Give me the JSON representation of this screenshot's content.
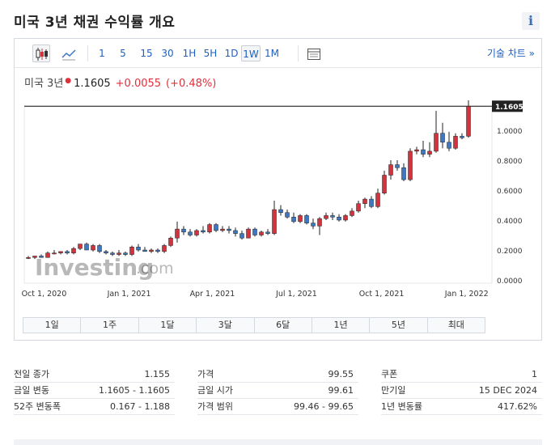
{
  "page": {
    "title": "미국 3년 채권 수익률 개요"
  },
  "toolbar": {
    "intervals": [
      "1",
      "5",
      "15",
      "30",
      "1H",
      "5H",
      "1D",
      "1W",
      "1M"
    ],
    "active_interval": "1W",
    "advanced_chart_link": "기술 차트 »"
  },
  "quote": {
    "name": "미국 3년",
    "price": "1.1605",
    "change": "+0.0055",
    "change_pct": "(+0.48%)"
  },
  "colors": {
    "up": "#d1343f",
    "down": "#3f78c2",
    "accent": "#1f5fbf"
  },
  "watermark": {
    "brand": "Investing",
    "suffix": ".com"
  },
  "chart_data": {
    "type": "candlestick",
    "x_tick_labels": [
      "Oct 1, 2020",
      "Jan 1, 2021",
      "Apr 1, 2021",
      "Jul 1, 2021",
      "Oct 1, 2021",
      "Jan 1, 2022"
    ],
    "y_tick_labels": [
      "1.0000",
      "0.8000",
      "0.6000",
      "0.4000",
      "0.2000",
      "0.0000"
    ],
    "y_ticks": [
      1.0,
      0.8,
      0.6,
      0.4,
      0.2,
      0.0
    ],
    "ylim": [
      0.0,
      1.2
    ],
    "last_price_label": "1.1605",
    "last_price": 1.1605,
    "start_date": "2020-09-14",
    "end_date": "2022-01-24",
    "candles": [
      {
        "o": 0.15,
        "h": 0.16,
        "l": 0.14,
        "c": 0.15
      },
      {
        "o": 0.15,
        "h": 0.16,
        "l": 0.14,
        "c": 0.16
      },
      {
        "o": 0.16,
        "h": 0.17,
        "l": 0.15,
        "c": 0.15
      },
      {
        "o": 0.15,
        "h": 0.19,
        "l": 0.15,
        "c": 0.18
      },
      {
        "o": 0.18,
        "h": 0.2,
        "l": 0.17,
        "c": 0.18
      },
      {
        "o": 0.18,
        "h": 0.19,
        "l": 0.17,
        "c": 0.19
      },
      {
        "o": 0.19,
        "h": 0.2,
        "l": 0.17,
        "c": 0.18
      },
      {
        "o": 0.18,
        "h": 0.22,
        "l": 0.17,
        "c": 0.21
      },
      {
        "o": 0.21,
        "h": 0.24,
        "l": 0.2,
        "c": 0.24
      },
      {
        "o": 0.24,
        "h": 0.25,
        "l": 0.2,
        "c": 0.2
      },
      {
        "o": 0.2,
        "h": 0.24,
        "l": 0.19,
        "c": 0.23
      },
      {
        "o": 0.23,
        "h": 0.24,
        "l": 0.18,
        "c": 0.19
      },
      {
        "o": 0.19,
        "h": 0.2,
        "l": 0.17,
        "c": 0.18
      },
      {
        "o": 0.18,
        "h": 0.19,
        "l": 0.16,
        "c": 0.17
      },
      {
        "o": 0.17,
        "h": 0.2,
        "l": 0.16,
        "c": 0.18
      },
      {
        "o": 0.18,
        "h": 0.19,
        "l": 0.16,
        "c": 0.17
      },
      {
        "o": 0.17,
        "h": 0.23,
        "l": 0.16,
        "c": 0.22
      },
      {
        "o": 0.22,
        "h": 0.24,
        "l": 0.19,
        "c": 0.2
      },
      {
        "o": 0.2,
        "h": 0.22,
        "l": 0.19,
        "c": 0.19
      },
      {
        "o": 0.19,
        "h": 0.21,
        "l": 0.18,
        "c": 0.2
      },
      {
        "o": 0.2,
        "h": 0.21,
        "l": 0.18,
        "c": 0.19
      },
      {
        "o": 0.19,
        "h": 0.24,
        "l": 0.18,
        "c": 0.23
      },
      {
        "o": 0.23,
        "h": 0.29,
        "l": 0.22,
        "c": 0.28
      },
      {
        "o": 0.28,
        "h": 0.39,
        "l": 0.25,
        "c": 0.34
      },
      {
        "o": 0.34,
        "h": 0.36,
        "l": 0.3,
        "c": 0.32
      },
      {
        "o": 0.32,
        "h": 0.34,
        "l": 0.29,
        "c": 0.3
      },
      {
        "o": 0.3,
        "h": 0.34,
        "l": 0.29,
        "c": 0.33
      },
      {
        "o": 0.33,
        "h": 0.36,
        "l": 0.31,
        "c": 0.32
      },
      {
        "o": 0.32,
        "h": 0.38,
        "l": 0.31,
        "c": 0.37
      },
      {
        "o": 0.37,
        "h": 0.38,
        "l": 0.32,
        "c": 0.33
      },
      {
        "o": 0.33,
        "h": 0.36,
        "l": 0.32,
        "c": 0.34
      },
      {
        "o": 0.34,
        "h": 0.36,
        "l": 0.31,
        "c": 0.33
      },
      {
        "o": 0.33,
        "h": 0.35,
        "l": 0.29,
        "c": 0.31
      },
      {
        "o": 0.31,
        "h": 0.33,
        "l": 0.27,
        "c": 0.28
      },
      {
        "o": 0.28,
        "h": 0.35,
        "l": 0.28,
        "c": 0.34
      },
      {
        "o": 0.34,
        "h": 0.35,
        "l": 0.29,
        "c": 0.3
      },
      {
        "o": 0.3,
        "h": 0.33,
        "l": 0.29,
        "c": 0.32
      },
      {
        "o": 0.32,
        "h": 0.34,
        "l": 0.3,
        "c": 0.31
      },
      {
        "o": 0.31,
        "h": 0.53,
        "l": 0.3,
        "c": 0.47
      },
      {
        "o": 0.47,
        "h": 0.5,
        "l": 0.43,
        "c": 0.45
      },
      {
        "o": 0.45,
        "h": 0.47,
        "l": 0.41,
        "c": 0.42
      },
      {
        "o": 0.42,
        "h": 0.45,
        "l": 0.38,
        "c": 0.39
      },
      {
        "o": 0.39,
        "h": 0.44,
        "l": 0.38,
        "c": 0.43
      },
      {
        "o": 0.43,
        "h": 0.44,
        "l": 0.37,
        "c": 0.38
      },
      {
        "o": 0.38,
        "h": 0.41,
        "l": 0.34,
        "c": 0.36
      },
      {
        "o": 0.36,
        "h": 0.42,
        "l": 0.3,
        "c": 0.41
      },
      {
        "o": 0.41,
        "h": 0.45,
        "l": 0.4,
        "c": 0.43
      },
      {
        "o": 0.43,
        "h": 0.45,
        "l": 0.4,
        "c": 0.42
      },
      {
        "o": 0.42,
        "h": 0.44,
        "l": 0.39,
        "c": 0.4
      },
      {
        "o": 0.4,
        "h": 0.44,
        "l": 0.39,
        "c": 0.43
      },
      {
        "o": 0.43,
        "h": 0.48,
        "l": 0.42,
        "c": 0.46
      },
      {
        "o": 0.46,
        "h": 0.53,
        "l": 0.45,
        "c": 0.51
      },
      {
        "o": 0.51,
        "h": 0.55,
        "l": 0.48,
        "c": 0.54
      },
      {
        "o": 0.54,
        "h": 0.56,
        "l": 0.48,
        "c": 0.49
      },
      {
        "o": 0.49,
        "h": 0.61,
        "l": 0.48,
        "c": 0.58
      },
      {
        "o": 0.58,
        "h": 0.73,
        "l": 0.57,
        "c": 0.7
      },
      {
        "o": 0.7,
        "h": 0.8,
        "l": 0.67,
        "c": 0.77
      },
      {
        "o": 0.77,
        "h": 0.8,
        "l": 0.73,
        "c": 0.75
      },
      {
        "o": 0.75,
        "h": 0.78,
        "l": 0.66,
        "c": 0.67
      },
      {
        "o": 0.67,
        "h": 0.88,
        "l": 0.66,
        "c": 0.86
      },
      {
        "o": 0.86,
        "h": 0.89,
        "l": 0.84,
        "c": 0.87
      },
      {
        "o": 0.87,
        "h": 0.93,
        "l": 0.82,
        "c": 0.84
      },
      {
        "o": 0.84,
        "h": 0.92,
        "l": 0.82,
        "c": 0.86
      },
      {
        "o": 0.86,
        "h": 1.13,
        "l": 0.85,
        "c": 0.98
      },
      {
        "o": 0.98,
        "h": 1.05,
        "l": 0.88,
        "c": 0.92
      },
      {
        "o": 0.92,
        "h": 0.99,
        "l": 0.86,
        "c": 0.88
      },
      {
        "o": 0.88,
        "h": 0.98,
        "l": 0.87,
        "c": 0.96
      },
      {
        "o": 0.96,
        "h": 0.98,
        "l": 0.94,
        "c": 0.95
      },
      {
        "o": 0.96,
        "h": 1.2,
        "l": 0.95,
        "c": 1.16
      }
    ]
  },
  "ranges": [
    "1일",
    "1주",
    "1달",
    "3달",
    "6달",
    "1년",
    "5년",
    "최대"
  ],
  "stats": [
    [
      {
        "label": "전일 종가",
        "value": "1.155"
      },
      {
        "label": "가격",
        "value": "99.55"
      },
      {
        "label": "쿠폰",
        "value": "1"
      }
    ],
    [
      {
        "label": "금일 변동",
        "value": "1.1605 - 1.1605"
      },
      {
        "label": "금일 시가",
        "value": "99.61"
      },
      {
        "label": "만기일",
        "value": "15 DEC 2024"
      }
    ],
    [
      {
        "label": "52주 변동폭",
        "value": "0.167 - 1.188"
      },
      {
        "label": "가격 범위",
        "value": "99.46 - 99.65"
      },
      {
        "label": "1년 변동률",
        "value": "417.62%"
      }
    ]
  ]
}
